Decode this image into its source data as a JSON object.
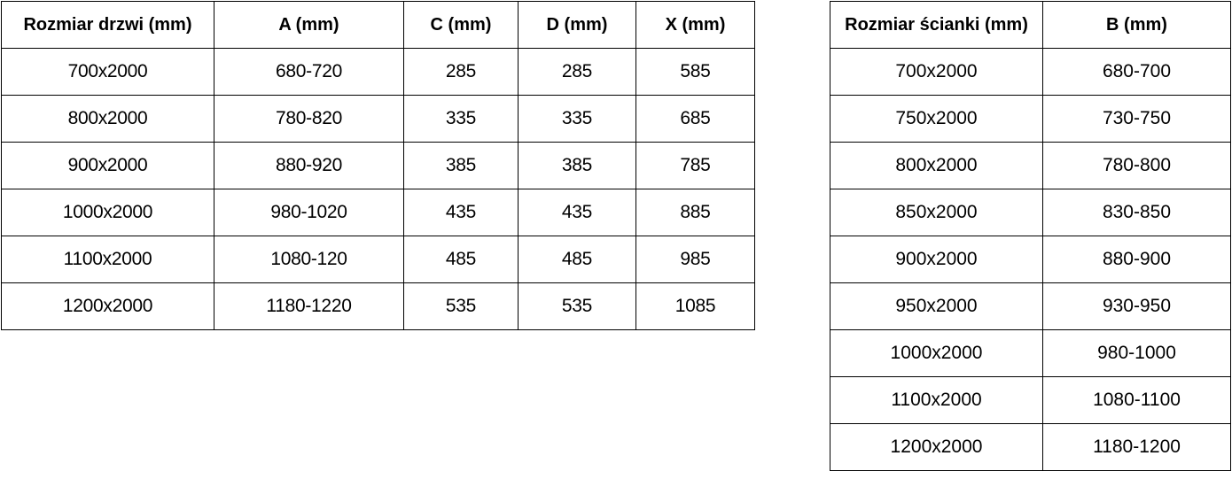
{
  "page": {
    "background_color": "#ffffff",
    "border_color": "#000000",
    "text_color": "#000000"
  },
  "door_table": {
    "columns": [
      "Rozmiar drzwi (mm)",
      "A (mm)",
      "C (mm)",
      "D (mm)",
      "X (mm)"
    ],
    "rows": [
      [
        "700x2000",
        "680-720",
        "285",
        "285",
        "585"
      ],
      [
        "800x2000",
        "780-820",
        "335",
        "335",
        "685"
      ],
      [
        "900x2000",
        "880-920",
        "385",
        "385",
        "785"
      ],
      [
        "1000x2000",
        "980-1020",
        "435",
        "435",
        "885"
      ],
      [
        "1100x2000",
        "1080-120",
        "485",
        "485",
        "985"
      ],
      [
        "1200x2000",
        "1180-1220",
        "535",
        "535",
        "1085"
      ]
    ]
  },
  "wall_table": {
    "columns": [
      "Rozmiar ścianki (mm)",
      "B (mm)"
    ],
    "rows": [
      [
        "700x2000",
        "680-700"
      ],
      [
        "750x2000",
        "730-750"
      ],
      [
        "800x2000",
        "780-800"
      ],
      [
        "850x2000",
        "830-850"
      ],
      [
        "900x2000",
        "880-900"
      ],
      [
        "950x2000",
        "930-950"
      ],
      [
        "1000x2000",
        "980-1000"
      ],
      [
        "1100x2000",
        "1080-1100"
      ],
      [
        "1200x2000",
        "1180-1200"
      ]
    ]
  }
}
